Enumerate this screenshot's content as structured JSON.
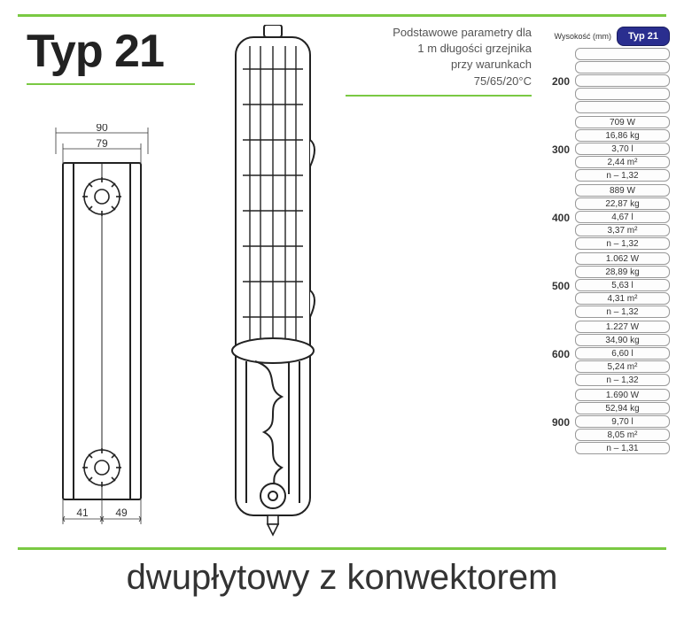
{
  "title": "Typ 21",
  "accent_color": "#7ac943",
  "badge_color": "#2a2e8f",
  "params_text": {
    "line1": "Podstawowe parametry dla",
    "line2": "1 m długości grzejnika",
    "line3": "przy warunkach",
    "line4": "75/65/20°C"
  },
  "profile_dims": {
    "outer_width": "90",
    "inner_width": "79",
    "bottom_left": "41",
    "bottom_right": "49"
  },
  "spec": {
    "header_label": "Wysokość (mm)",
    "badge": "Typ 21",
    "groups": [
      {
        "height": "200",
        "cells": [
          "",
          "",
          "",
          "",
          ""
        ]
      },
      {
        "height": "300",
        "cells": [
          "709 W",
          "16,86 kg",
          "3,70 l",
          "2,44 m²",
          "n – 1,32"
        ]
      },
      {
        "height": "400",
        "cells": [
          "889 W",
          "22,87 kg",
          "4,67 l",
          "3,37 m²",
          "n – 1,32"
        ]
      },
      {
        "height": "500",
        "cells": [
          "1.062 W",
          "28,89 kg",
          "5,63 l",
          "4,31 m²",
          "n – 1,32"
        ]
      },
      {
        "height": "600",
        "cells": [
          "1.227 W",
          "34,90 kg",
          "6,60 l",
          "5,24 m²",
          "n – 1,32"
        ]
      },
      {
        "height": "900",
        "cells": [
          "1.690 W",
          "52,94 kg",
          "9,70 l",
          "8,05 m²",
          "n – 1,31"
        ]
      }
    ]
  },
  "caption": "dwupłytowy z konwektorem",
  "drawing": {
    "stroke": "#222222",
    "fill": "#ffffff"
  }
}
